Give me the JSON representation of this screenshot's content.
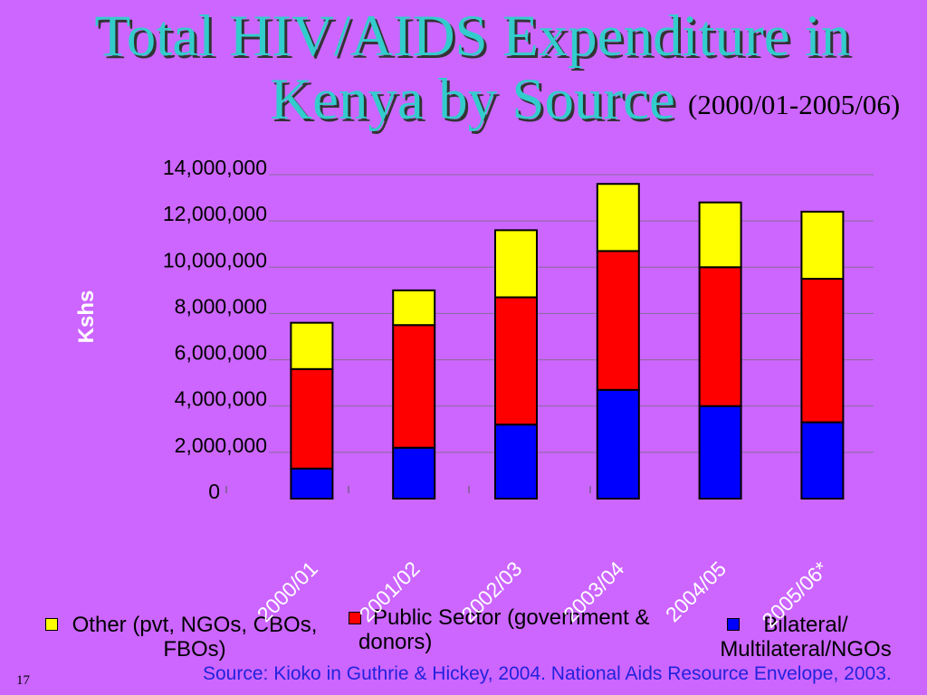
{
  "slide": {
    "source": "Source: Kioko in Guthrie & Hickey, 2004. National Aids Resource Envelope, 2003.",
    "page_number": "17",
    "colors": {
      "background": "#CC66FF",
      "title": "#33CCCC",
      "source_text": "#2222DD"
    }
  },
  "chart_data": {
    "type": "bar",
    "stacked": true,
    "title": "Total HIV/AIDS Expenditure in Kenya by Source",
    "subtitle": "(2000/01-2005/06)",
    "xlabel": "",
    "ylabel": "Kshs",
    "categories": [
      "2000/01",
      "2001/02",
      "2002/03",
      "2003/04",
      "2004/05",
      "2005/06*"
    ],
    "ylim": [
      0,
      14000000
    ],
    "y_ticks": [
      0,
      2000000,
      4000000,
      6000000,
      8000000,
      10000000,
      12000000,
      14000000
    ],
    "y_tick_labels": [
      "0",
      "2,000,000",
      "4,000,000",
      "6,000,000",
      "8,000,000",
      "10,000,000",
      "12,000,000",
      "14,000,000"
    ],
    "grid": true,
    "legend_position": "bottom",
    "series": [
      {
        "name": "Bilateral/ Multilateral/NGOs",
        "color": "#0000FF",
        "values": [
          1300000,
          2200000,
          3200000,
          4700000,
          4000000,
          3300000
        ]
      },
      {
        "name": "Public Sector (government & donors)",
        "color": "#FF0000",
        "values": [
          4300000,
          5300000,
          5500000,
          6000000,
          6000000,
          6200000
        ]
      },
      {
        "name": "Other (pvt, NGOs, CBOs, FBOs)",
        "color": "#FFFF00",
        "values": [
          2000000,
          1500000,
          2900000,
          2900000,
          2800000,
          2900000
        ]
      }
    ]
  }
}
